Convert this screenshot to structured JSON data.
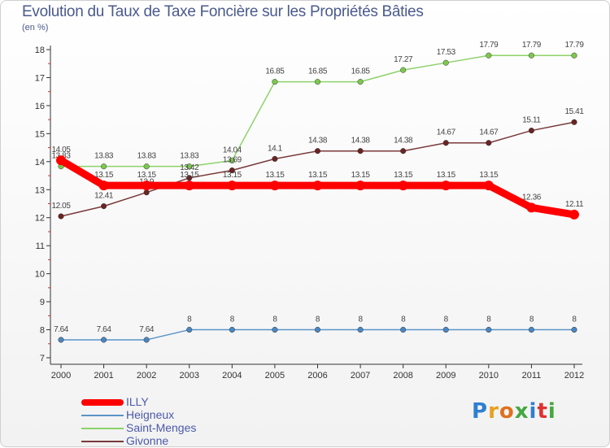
{
  "header": {
    "title": "Evolution du Taux de Taxe Foncière sur les Propriétés Bâties",
    "subtitle": "(en %)"
  },
  "logo": {
    "letters": [
      "P",
      "r",
      "o",
      "x",
      "i",
      "t",
      "i"
    ],
    "colors": [
      "#2e7fd0",
      "#e8a020",
      "#e07020",
      "#44a840",
      "#2e7fd0",
      "#e03030",
      "#44a840"
    ]
  },
  "chart_data": {
    "type": "line",
    "title": "Evolution du Taux de Taxe Foncière sur les Propriétés Bâties",
    "ylabel": "(en %)",
    "xlabel": "",
    "x": [
      "2000",
      "2001",
      "2002",
      "2003",
      "2004",
      "2005",
      "2006",
      "2007",
      "2008",
      "2009",
      "2010",
      "2011",
      "2012"
    ],
    "ylim": [
      7,
      18
    ],
    "yticks": [
      "7",
      "8",
      "9",
      "10",
      "11",
      "12",
      "13",
      "14",
      "15",
      "16",
      "17",
      "18"
    ],
    "grid": false,
    "legend_position": "bottom-left",
    "series": [
      {
        "name": "Heigneux",
        "color": "#5b94c8",
        "point_color": "#4a86c0",
        "weight": "thin",
        "values": [
          7.64,
          7.64,
          7.64,
          8,
          8,
          8,
          8,
          8,
          8,
          8,
          8,
          8,
          8
        ],
        "labels": [
          "7.64",
          "7.64",
          "7.64",
          "8",
          "8",
          "8",
          "8",
          "8",
          "8",
          "8",
          "8",
          "8",
          "8"
        ]
      },
      {
        "name": "Saint-Menges",
        "color": "#8ed26a",
        "point_color": "#7cc84f",
        "weight": "thin",
        "values": [
          13.83,
          13.83,
          13.83,
          13.83,
          14.04,
          16.85,
          16.85,
          16.85,
          17.27,
          17.53,
          17.79,
          17.79,
          17.79
        ],
        "labels": [
          "13.83",
          "13.83",
          "13.83",
          "13.83",
          "14.04",
          "16.85",
          "16.85",
          "16.85",
          "17.27",
          "17.53",
          "17.79",
          "17.79",
          "17.79"
        ]
      },
      {
        "name": "Givonne",
        "color": "#7a3a3a",
        "point_color": "#6a2424",
        "weight": "thin",
        "values": [
          12.05,
          12.41,
          12.9,
          13.42,
          13.69,
          14.1,
          14.38,
          14.38,
          14.38,
          14.67,
          14.67,
          15.11,
          15.41
        ],
        "labels": [
          "12.05",
          "12.41",
          "12.9",
          "13.42",
          "13.69",
          "14.1",
          "14.38",
          "14.38",
          "14.38",
          "14.67",
          "14.67",
          "15.11",
          "15.41"
        ]
      },
      {
        "name": "ILLY",
        "color": "#ff0000",
        "point_color": "#ff0000",
        "weight": "thick",
        "values": [
          14.05,
          13.15,
          13.15,
          13.15,
          13.15,
          13.15,
          13.15,
          13.15,
          13.15,
          13.15,
          13.15,
          12.36,
          12.11
        ],
        "labels": [
          "14.05",
          "13.15",
          "13.15",
          "13.15",
          "13.15",
          "13.15",
          "13.15",
          "13.15",
          "13.15",
          "13.15",
          "13.15",
          "12.36",
          "12.11"
        ]
      }
    ],
    "legend": [
      "ILLY",
      "Heigneux",
      "Saint-Menges",
      "Givonne"
    ]
  }
}
